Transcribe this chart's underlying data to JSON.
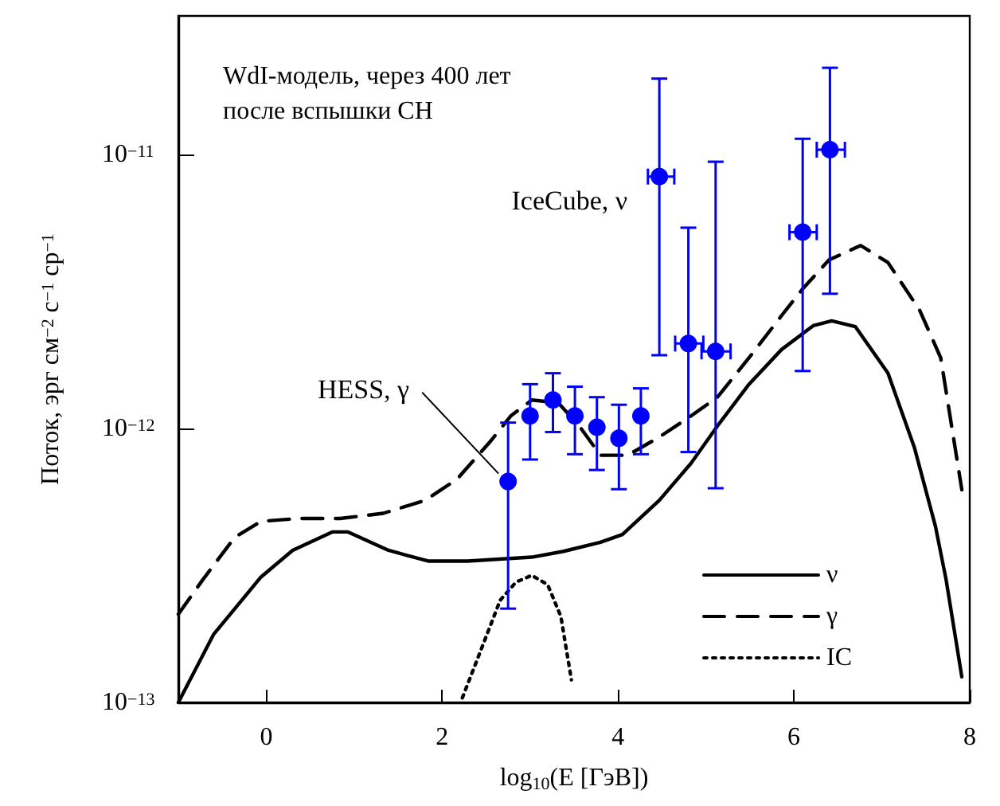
{
  "chart_data": {
    "type": "line",
    "title": "WdI-модель, через 400 лет\nпосле вспышки СН",
    "xlabel": "log$_{10}$(E [ГэВ])",
    "ylabel": "Поток, эрг см$^{−2}$ с$^{−1}$ ср$^{−1}$",
    "xlim": [
      -1,
      8
    ],
    "xticks": [
      0,
      2,
      4,
      6,
      8
    ],
    "ylim": [
      1e-13,
      3.2e-11
    ],
    "yticks": [
      {
        "value": 1e-13,
        "label": "10$^{−13}$"
      },
      {
        "value": 1e-12,
        "label": "10$^{−12}$"
      },
      {
        "value": 1e-11,
        "label": "10$^{−11}$"
      }
    ],
    "log": "y",
    "grid": false,
    "legend": "bottom right",
    "annotations": [
      {
        "text": "HESS, γ",
        "x": 2.75,
        "y": 6.4e-13
      },
      {
        "text": "IceCube, ν",
        "x": 4.47,
        "y": 8.3e-12
      }
    ],
    "series": [
      {
        "name": "ν",
        "color": "#000000",
        "line_style": "solid",
        "marker": "none",
        "x": [
          -1,
          -0.6,
          -0.06,
          0.3,
          0.75,
          0.93,
          1.39,
          1.84,
          2.29,
          3.02,
          3.38,
          3.8,
          4.05,
          4.47,
          4.83,
          5.13,
          5.49,
          5.86,
          6.22,
          6.43,
          6.7,
          7.07,
          7.37,
          7.61,
          7.73,
          7.91
        ],
        "values": [
          1e-13,
          1.77e-13,
          2.87e-13,
          3.59e-13,
          4.19e-13,
          4.19e-13,
          3.59e-13,
          3.28e-13,
          3.28e-13,
          3.39e-13,
          3.56e-13,
          3.84e-13,
          4.1e-13,
          5.47e-13,
          7.46e-13,
          1.02e-12,
          1.45e-12,
          1.94e-12,
          2.37e-12,
          2.47e-12,
          2.35e-12,
          1.59e-12,
          8.53e-13,
          4.39e-13,
          2.82e-13,
          1.24e-13
        ]
      },
      {
        "name": "γ",
        "color": "#000000",
        "line_style": "dashed",
        "marker": "none",
        "x": [
          -1,
          -0.72,
          -0.36,
          -0.06,
          0.36,
          0.84,
          1.33,
          1.81,
          2.17,
          2.54,
          2.78,
          3.02,
          3.32,
          3.56,
          3.8,
          4.11,
          4.47,
          4.83,
          5.13,
          5.49,
          5.86,
          6.1,
          6.4,
          6.76,
          7.07,
          7.43,
          7.67,
          7.91
        ],
        "values": [
          2.1e-13,
          2.81e-13,
          4e-13,
          4.58e-13,
          4.69e-13,
          4.69e-13,
          4.9e-13,
          5.47e-13,
          6.53e-13,
          8.9e-13,
          1.11e-12,
          1.27e-12,
          1.24e-12,
          1.02e-12,
          7.98e-13,
          7.98e-13,
          9.3e-13,
          1.11e-12,
          1.3e-12,
          1.81e-12,
          2.58e-12,
          3.23e-12,
          4.12e-12,
          4.65e-12,
          4.03e-12,
          2.7e-12,
          1.81e-12,
          5.97e-13
        ]
      },
      {
        "name": "IC",
        "color": "#000000",
        "line_style": "dotted",
        "marker": "none",
        "x": [
          2.23,
          2.45,
          2.66,
          2.84,
          3.02,
          3.2,
          3.35,
          3.47
        ],
        "values": [
          1.04e-13,
          1.58e-13,
          2.36e-13,
          2.75e-13,
          2.91e-13,
          2.69e-13,
          2.06e-13,
          1.21e-13
        ]
      },
      {
        "type": "scatter",
        "color": "#0000ff",
        "marker": "circle",
        "x": [
          2.75,
          3.0,
          3.26,
          3.51,
          3.76,
          4.01,
          4.26
        ],
        "values": [
          6.4e-13,
          1.11e-12,
          1.27e-12,
          1.11e-12,
          1.01e-12,
          9.2e-13,
          1.11e-12
        ],
        "errors": [
          [
            2.2e-13,
            1.05e-12
          ],
          [
            7.7e-13,
            1.45e-12
          ],
          [
            9.7e-13,
            1.59e-12
          ],
          [
            8.05e-13,
            1.42e-12
          ],
          [
            7.05e-13,
            1.3e-12
          ],
          [
            6e-13,
            1.22e-12
          ],
          [
            8.05e-13,
            1.4e-12
          ]
        ]
      },
      {
        "type": "scatter",
        "color": "#0000ff",
        "marker": "circle",
        "x": [
          4.47,
          4.8,
          5.11,
          6.1,
          6.41
        ],
        "values": [
          8.3e-12,
          2.04e-12,
          1.91e-12,
          5.2e-12,
          1.04e-11
        ],
        "errors": [
          [
            1.85e-12,
            1.89e-11
          ],
          [
            8.2e-13,
            5.4e-12
          ],
          [
            6.05e-13,
            9.4e-12
          ],
          [
            1.62e-12,
            1.14e-11
          ],
          [
            3.1e-12,
            2.07e-11
          ]
        ],
        "xerrors": [
          [
            4.34,
            4.64
          ],
          [
            4.65,
            4.97
          ],
          [
            4.95,
            5.28
          ],
          [
            5.95,
            6.26
          ],
          [
            6.26,
            6.58
          ]
        ]
      }
    ]
  }
}
